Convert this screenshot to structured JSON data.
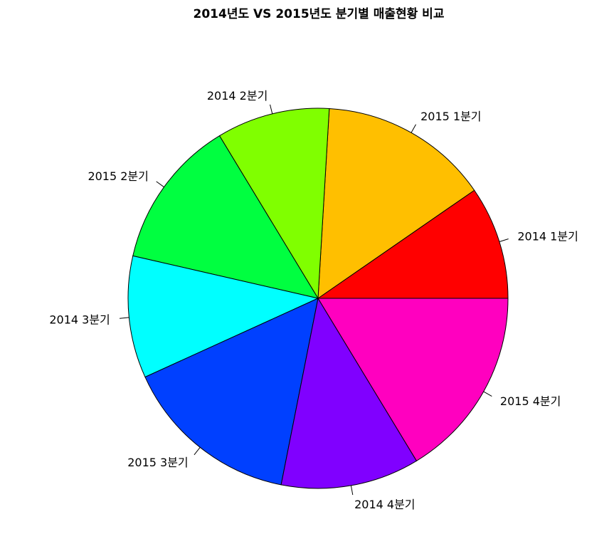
{
  "chart_data": {
    "type": "pie",
    "title": "2014년도 VS 2015년도 분기별 매출현황 비교",
    "start_angle_deg": 0,
    "direction": "counterclockwise",
    "labels": [
      "2014 1분기",
      "2015 1분기",
      "2014 2분기",
      "2015 2분기",
      "2014 3분기",
      "2015 3분기",
      "2014 4분기",
      "2015 4분기"
    ],
    "values": [
      10.2,
      15.3,
      10.2,
      13.5,
      11.0,
      16.0,
      12.5,
      17.3
    ],
    "colors": [
      "#FF0000",
      "#FFBF00",
      "#80FF00",
      "#00FF40",
      "#00FFFF",
      "#0040FF",
      "#8000FF",
      "#FF00BF"
    ]
  }
}
